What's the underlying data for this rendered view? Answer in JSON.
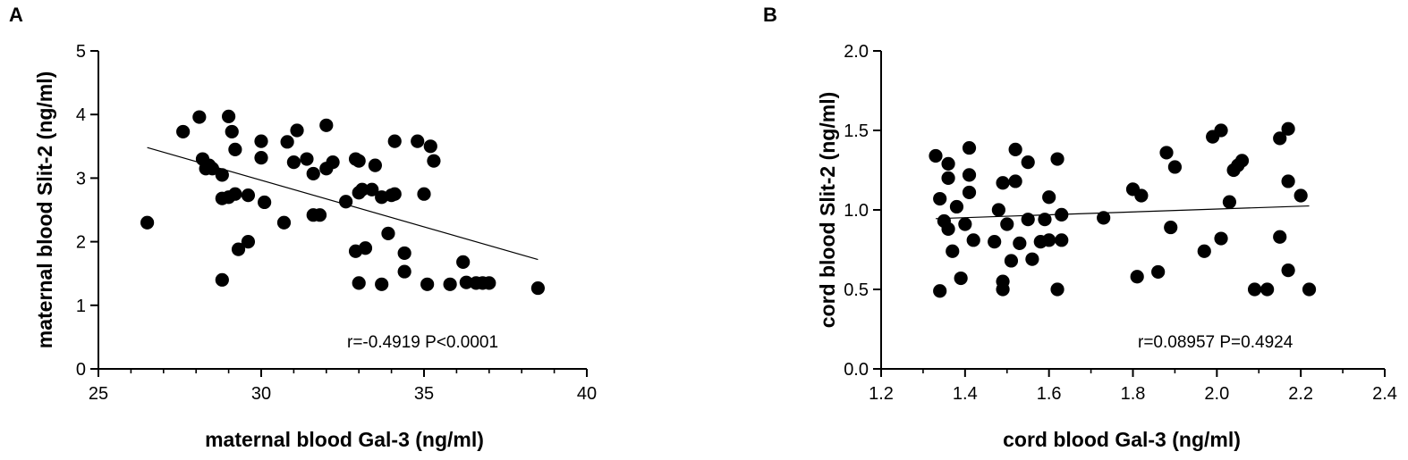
{
  "chart_data": [
    {
      "type": "scatter",
      "panel_label": "A",
      "xlabel": "maternal blood Gal-3 (ng/ml)",
      "ylabel": "maternal blood Slit-2 (ng/ml)",
      "xlim": [
        25,
        40
      ],
      "ylim": [
        0,
        5
      ],
      "xticks": [
        "25",
        "30",
        "35",
        "40"
      ],
      "yticks": [
        "0",
        "1",
        "2",
        "3",
        "4",
        "5"
      ],
      "annotation": "r=-0.4919 P<0.0001",
      "points": [
        [
          26.5,
          2.3
        ],
        [
          27.6,
          3.73
        ],
        [
          28.1,
          3.96
        ],
        [
          28.2,
          3.3
        ],
        [
          28.3,
          3.15
        ],
        [
          28.4,
          3.2
        ],
        [
          28.5,
          3.15
        ],
        [
          28.8,
          3.05
        ],
        [
          28.8,
          2.68
        ],
        [
          28.8,
          1.4
        ],
        [
          29.0,
          3.97
        ],
        [
          29.0,
          2.7
        ],
        [
          29.1,
          3.73
        ],
        [
          29.2,
          3.45
        ],
        [
          29.2,
          2.75
        ],
        [
          29.3,
          1.88
        ],
        [
          29.6,
          2.73
        ],
        [
          29.6,
          2.0
        ],
        [
          30.0,
          3.58
        ],
        [
          30.0,
          3.32
        ],
        [
          30.1,
          2.62
        ],
        [
          30.7,
          2.3
        ],
        [
          30.8,
          3.57
        ],
        [
          31.0,
          3.25
        ],
        [
          31.1,
          3.75
        ],
        [
          31.4,
          3.3
        ],
        [
          31.6,
          3.07
        ],
        [
          31.6,
          2.42
        ],
        [
          31.8,
          2.42
        ],
        [
          32.0,
          3.15
        ],
        [
          32.0,
          3.83
        ],
        [
          32.2,
          3.25
        ],
        [
          32.6,
          2.63
        ],
        [
          32.9,
          3.3
        ],
        [
          33.0,
          3.27
        ],
        [
          32.9,
          1.85
        ],
        [
          33.0,
          1.35
        ],
        [
          33.0,
          2.77
        ],
        [
          33.1,
          2.82
        ],
        [
          33.2,
          1.9
        ],
        [
          33.4,
          2.82
        ],
        [
          33.5,
          3.2
        ],
        [
          33.7,
          2.7
        ],
        [
          33.7,
          1.33
        ],
        [
          33.9,
          2.13
        ],
        [
          34.0,
          2.73
        ],
        [
          34.1,
          2.75
        ],
        [
          34.1,
          3.58
        ],
        [
          34.4,
          1.82
        ],
        [
          34.4,
          1.53
        ],
        [
          34.8,
          3.58
        ],
        [
          35.0,
          2.75
        ],
        [
          35.1,
          1.33
        ],
        [
          35.2,
          3.5
        ],
        [
          35.3,
          3.27
        ],
        [
          35.8,
          1.33
        ],
        [
          36.2,
          1.68
        ],
        [
          36.3,
          1.36
        ],
        [
          36.6,
          1.35
        ],
        [
          36.8,
          1.35
        ],
        [
          37.0,
          1.35
        ],
        [
          38.5,
          1.27
        ]
      ],
      "fit_line": {
        "x": [
          26.5,
          38.5
        ],
        "y": [
          3.48,
          1.72
        ]
      }
    },
    {
      "type": "scatter",
      "panel_label": "B",
      "xlabel": "cord blood Gal-3 (ng/ml)",
      "ylabel": "cord blood Slit-2 (ng/ml)",
      "xlim": [
        1.2,
        2.4
      ],
      "ylim": [
        0,
        2.0
      ],
      "xticks": [
        "1.2",
        "1.4",
        "1.6",
        "1.8",
        "2.0",
        "2.2",
        "2.4"
      ],
      "yticks": [
        "0.0",
        "0.5",
        "1.0",
        "1.5",
        "2.0"
      ],
      "annotation": "r=0.08957 P=0.4924",
      "points": [
        [
          1.33,
          1.34
        ],
        [
          1.34,
          1.07
        ],
        [
          1.35,
          0.93
        ],
        [
          1.34,
          0.49
        ],
        [
          1.36,
          1.29
        ],
        [
          1.36,
          1.2
        ],
        [
          1.36,
          0.88
        ],
        [
          1.37,
          0.74
        ],
        [
          1.38,
          1.02
        ],
        [
          1.39,
          0.57
        ],
        [
          1.4,
          0.91
        ],
        [
          1.41,
          1.39
        ],
        [
          1.41,
          1.22
        ],
        [
          1.41,
          1.11
        ],
        [
          1.42,
          0.81
        ],
        [
          1.47,
          0.8
        ],
        [
          1.48,
          1.0
        ],
        [
          1.49,
          1.17
        ],
        [
          1.49,
          0.55
        ],
        [
          1.49,
          0.5
        ],
        [
          1.5,
          0.91
        ],
        [
          1.51,
          0.68
        ],
        [
          1.52,
          1.38
        ],
        [
          1.52,
          1.18
        ],
        [
          1.53,
          0.79
        ],
        [
          1.55,
          1.3
        ],
        [
          1.55,
          0.94
        ],
        [
          1.56,
          0.69
        ],
        [
          1.58,
          0.8
        ],
        [
          1.59,
          0.94
        ],
        [
          1.6,
          1.08
        ],
        [
          1.6,
          0.81
        ],
        [
          1.62,
          1.32
        ],
        [
          1.62,
          0.5
        ],
        [
          1.63,
          0.81
        ],
        [
          1.63,
          0.97
        ],
        [
          1.73,
          0.95
        ],
        [
          1.8,
          1.13
        ],
        [
          1.81,
          0.58
        ],
        [
          1.82,
          1.09
        ],
        [
          1.86,
          0.61
        ],
        [
          1.88,
          1.36
        ],
        [
          1.89,
          0.89
        ],
        [
          1.9,
          1.27
        ],
        [
          1.97,
          0.74
        ],
        [
          1.99,
          1.46
        ],
        [
          2.01,
          1.5
        ],
        [
          2.01,
          0.82
        ],
        [
          2.03,
          1.05
        ],
        [
          2.04,
          1.25
        ],
        [
          2.05,
          1.28
        ],
        [
          2.06,
          1.31
        ],
        [
          2.09,
          0.5
        ],
        [
          2.12,
          0.5
        ],
        [
          2.15,
          1.45
        ],
        [
          2.15,
          0.83
        ],
        [
          2.17,
          1.51
        ],
        [
          2.17,
          1.18
        ],
        [
          2.17,
          0.62
        ],
        [
          2.2,
          1.09
        ],
        [
          2.22,
          0.5
        ]
      ],
      "fit_line": {
        "x": [
          1.33,
          2.22
        ],
        "y": [
          0.945,
          1.025
        ]
      }
    }
  ]
}
